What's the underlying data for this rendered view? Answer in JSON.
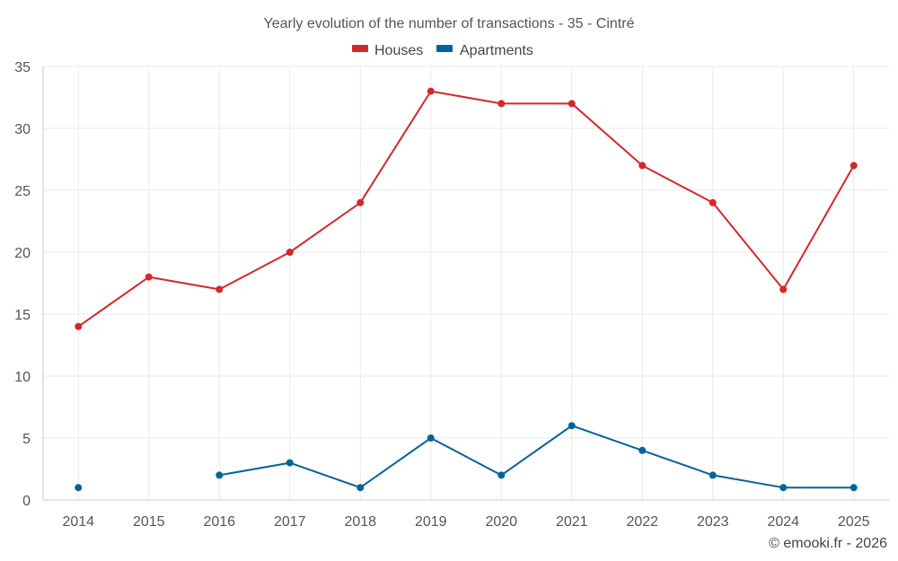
{
  "chart_data": {
    "type": "line",
    "title": "Yearly evolution of the number of transactions - 35 - Cintré",
    "categories": [
      "2014",
      "2015",
      "2016",
      "2017",
      "2018",
      "2019",
      "2020",
      "2021",
      "2022",
      "2023",
      "2024",
      "2025"
    ],
    "ylim": [
      0,
      35
    ],
    "yticks": [
      0,
      5,
      10,
      15,
      20,
      25,
      30,
      35
    ],
    "grid": true,
    "legend_position": "top-center",
    "series": [
      {
        "name": "Houses",
        "color": "#d62728",
        "values": [
          14,
          18,
          17,
          20,
          24,
          33,
          32,
          32,
          27,
          24,
          17,
          27
        ]
      },
      {
        "name": "Apartments",
        "color": "#00649a",
        "values": [
          1,
          null,
          2,
          3,
          1,
          5,
          2,
          6,
          4,
          2,
          1,
          1
        ]
      }
    ],
    "credit": "© emooki.fr - 2026"
  }
}
